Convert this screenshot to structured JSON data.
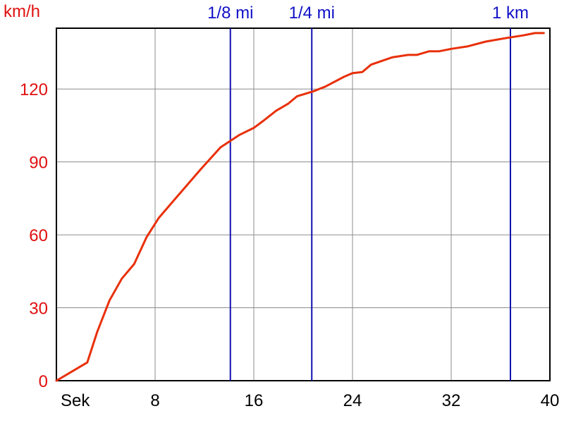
{
  "chart_data": {
    "type": "line",
    "ylabel": "km/h",
    "xlabel": "Sek",
    "xlim": [
      0,
      40
    ],
    "ylim": [
      0,
      145
    ],
    "grid": true,
    "x_ticks": [
      8,
      16,
      24,
      32,
      40
    ],
    "y_ticks": [
      0,
      30,
      60,
      90,
      120
    ],
    "colors": {
      "line": "#e8300a",
      "marker": "#1010b0",
      "marker_text": "#1010c8",
      "y_text": "#e01010",
      "grid": "#8c8c8c"
    },
    "series": [
      {
        "x": [
          0,
          1,
          2.5,
          3.3,
          4.3,
          5.3,
          6.3,
          7.3,
          8.3,
          10,
          11.7,
          13.3,
          14.8,
          16,
          16.8,
          17.8,
          18.8,
          19.5,
          20.8,
          21.8,
          23.3,
          24,
          24.8,
          25.5,
          27.2,
          28.5,
          29.2,
          30.2,
          31,
          32,
          33.3,
          34.8,
          36.5,
          37.8,
          38.8,
          39.5
        ],
        "y": [
          0,
          3,
          7.5,
          20,
          33,
          42,
          48,
          59,
          67,
          77,
          87,
          96,
          101,
          104,
          107,
          111,
          114,
          117,
          119,
          121,
          125,
          126.5,
          127,
          130,
          133,
          134,
          134,
          135.5,
          135.5,
          136.5,
          137.5,
          139.5,
          141,
          142,
          143,
          143
        ]
      }
    ],
    "markers": [
      {
        "label": "1/8 mi",
        "x": 14.1
      },
      {
        "label": "1/4 mi",
        "x": 20.7
      },
      {
        "label": "1 km",
        "x": 36.8
      }
    ]
  }
}
